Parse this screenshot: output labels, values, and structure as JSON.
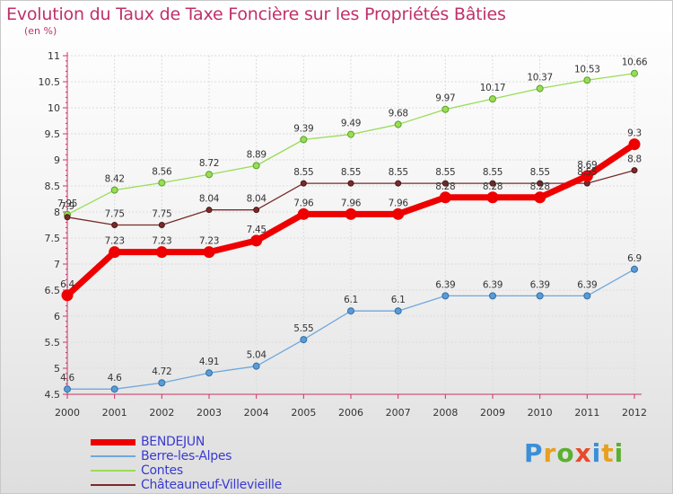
{
  "title": "Evolution du Taux de Taxe Foncière sur les Propriétés Bâties",
  "subtitle": "(en %)",
  "logo": "Proxiti",
  "colors": {
    "title": "#c0306a",
    "bendejun": "#ee0000",
    "berre": "#6fa8dc",
    "contes": "#99dd55",
    "chateauneuf": "#7a2a2a",
    "legend_text": "#3a3ad0"
  },
  "chart_data": {
    "type": "line",
    "title": "Evolution du Taux de Taxe Foncière sur les Propriétés Bâties",
    "ylabel": "(en %)",
    "x": [
      "2000",
      "2001",
      "2002",
      "2003",
      "2004",
      "2005",
      "2006",
      "2007",
      "2008",
      "2009",
      "2010",
      "2011",
      "2012"
    ],
    "ylim": [
      4.5,
      11
    ],
    "yticks": [
      "4.5",
      "5",
      "5.5",
      "6",
      "6.5",
      "7",
      "7.5",
      "8",
      "8.5",
      "9",
      "9.5",
      "10",
      "10.5",
      "11"
    ],
    "grid": true,
    "legend_position": "bottom-left",
    "series": [
      {
        "name": "BENDEJUN",
        "values": [
          6.4,
          7.23,
          7.23,
          7.23,
          7.45,
          7.96,
          7.96,
          7.96,
          8.28,
          8.28,
          8.28,
          8.69,
          9.3
        ],
        "labels": [
          "6.4",
          "7.23",
          "7.23",
          "7.23",
          "7.45",
          "7.96",
          "7.96",
          "7.96",
          "8.28",
          "8.28",
          "8.28",
          "8.69",
          "9.3"
        ]
      },
      {
        "name": "Berre-les-Alpes",
        "values": [
          4.6,
          4.6,
          4.72,
          4.91,
          5.04,
          5.55,
          6.1,
          6.1,
          6.39,
          6.39,
          6.39,
          6.39,
          6.9
        ],
        "labels": [
          "4.6",
          "4.6",
          "4.72",
          "4.91",
          "5.04",
          "5.55",
          "6.1",
          "6.1",
          "6.39",
          "6.39",
          "6.39",
          "6.39",
          "6.9"
        ]
      },
      {
        "name": "Contes",
        "values": [
          7.95,
          8.42,
          8.56,
          8.72,
          8.89,
          9.39,
          9.49,
          9.68,
          9.97,
          10.17,
          10.37,
          10.53,
          10.66
        ],
        "labels": [
          "7.95",
          "8.42",
          "8.56",
          "8.72",
          "8.89",
          "9.39",
          "9.49",
          "9.68",
          "9.97",
          "10.17",
          "10.37",
          "10.53",
          "10.66"
        ]
      },
      {
        "name": "Châteauneuf-Villevieille",
        "values": [
          7.9,
          7.75,
          7.75,
          8.04,
          8.04,
          8.55,
          8.55,
          8.55,
          8.55,
          8.55,
          8.55,
          8.55,
          8.8
        ],
        "labels": [
          "7.9",
          "7.75",
          "7.75",
          "8.04",
          "8.04",
          "8.55",
          "8.55",
          "8.55",
          "8.55",
          "8.55",
          "8.55",
          "8.55",
          "8.8"
        ]
      }
    ]
  }
}
